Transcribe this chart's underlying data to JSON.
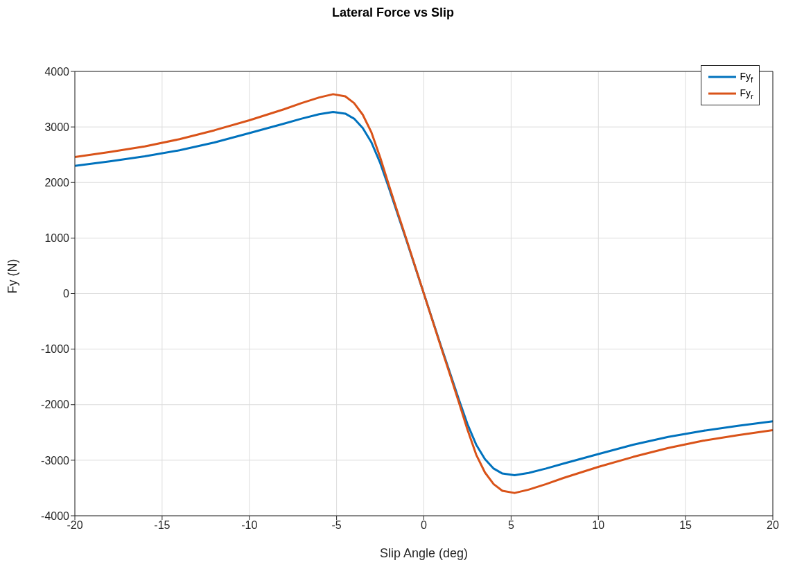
{
  "chart_data": {
    "type": "line",
    "title": "Lateral Force vs Slip",
    "xlabel": "Slip Angle (deg)",
    "ylabel": "Fy (N)",
    "x": [
      -20,
      -18,
      -16,
      -14,
      -12,
      -10,
      -8,
      -7,
      -6,
      -5.2,
      -4.5,
      -4,
      -3.5,
      -3,
      -2.5,
      -2,
      -1.5,
      -1,
      0,
      1,
      1.5,
      2,
      2.5,
      3,
      3.5,
      4,
      4.5,
      5.2,
      6,
      7,
      8,
      10,
      12,
      14,
      16,
      18,
      20
    ],
    "series": [
      {
        "name": "Fy$_{f}$",
        "color": "#0072bd",
        "values": [
          2300,
          2380,
          2470,
          2580,
          2720,
          2890,
          3060,
          3150,
          3230,
          3270,
          3240,
          3150,
          2980,
          2720,
          2350,
          1900,
          1430,
          960,
          0,
          -960,
          -1430,
          -1900,
          -2350,
          -2720,
          -2980,
          -3150,
          -3240,
          -3270,
          -3230,
          -3150,
          -3060,
          -2890,
          -2720,
          -2580,
          -2470,
          -2380,
          -2300
        ]
      },
      {
        "name": "Fy$_{r}$",
        "color": "#d95319",
        "values": [
          2460,
          2550,
          2650,
          2780,
          2940,
          3120,
          3320,
          3430,
          3530,
          3590,
          3550,
          3430,
          3220,
          2900,
          2450,
          1950,
          1460,
          980,
          0,
          -980,
          -1460,
          -1950,
          -2450,
          -2900,
          -3220,
          -3430,
          -3550,
          -3590,
          -3530,
          -3430,
          -3320,
          -3120,
          -2940,
          -2780,
          -2650,
          -2550,
          -2460
        ]
      }
    ],
    "xlim": [
      -20,
      20
    ],
    "xticks": [
      -20,
      -15,
      -10,
      -5,
      0,
      5,
      10,
      15,
      20
    ],
    "ylim": [
      -4000,
      4000
    ],
    "yticks": [
      -4000,
      -3000,
      -2000,
      -1000,
      0,
      1000,
      2000,
      3000,
      4000
    ],
    "grid": true,
    "legend": "top right",
    "marker": "none",
    "line_style": "solid"
  }
}
